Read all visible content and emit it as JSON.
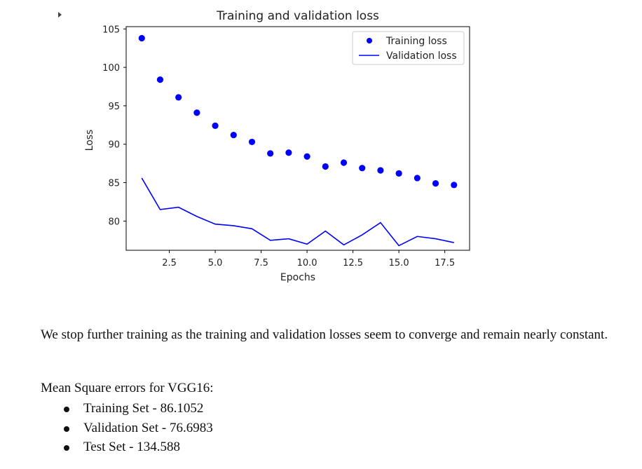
{
  "chart_data": {
    "type": "line",
    "title": "Training and validation loss",
    "xlabel": "Epochs",
    "ylabel": "Loss",
    "xlim": [
      0.15,
      18.85
    ],
    "ylim": [
      76.2,
      105.3
    ],
    "xticks": [
      2.5,
      5.0,
      7.5,
      10.0,
      12.5,
      15.0,
      17.5
    ],
    "xtick_labels": [
      "2.5",
      "5.0",
      "7.5",
      "10.0",
      "12.5",
      "15.0",
      "17.5"
    ],
    "yticks": [
      80,
      85,
      90,
      95,
      100,
      105
    ],
    "ytick_labels": [
      "80",
      "85",
      "90",
      "95",
      "100",
      "105"
    ],
    "grid": false,
    "legend_position": "top-right",
    "x": [
      1,
      2,
      3,
      4,
      5,
      6,
      7,
      8,
      9,
      10,
      11,
      12,
      13,
      14,
      15,
      16,
      17,
      18
    ],
    "series": [
      {
        "name": "Training loss",
        "style": "scatter",
        "color": "#0000ff",
        "values": [
          103.8,
          98.4,
          96.1,
          94.1,
          92.4,
          91.2,
          90.3,
          88.8,
          88.9,
          88.4,
          87.1,
          87.6,
          86.9,
          86.6,
          86.2,
          85.6,
          84.9,
          84.7
        ]
      },
      {
        "name": "Validation loss",
        "style": "line",
        "color": "#0000ff",
        "values": [
          85.6,
          81.5,
          81.8,
          80.6,
          79.6,
          79.4,
          79.0,
          77.5,
          77.7,
          77.0,
          78.7,
          76.9,
          78.2,
          79.8,
          76.8,
          78.0,
          77.7,
          77.2
        ]
      }
    ]
  },
  "text": {
    "paragraph": "We stop further training as the training and validation losses seem to converge and remain nearly constant.",
    "mse_title": "Mean Square errors for VGG16:",
    "results": [
      "Training Set - 86.1052",
      "Validation Set - 76.6983",
      "Test Set - 134.588"
    ]
  }
}
